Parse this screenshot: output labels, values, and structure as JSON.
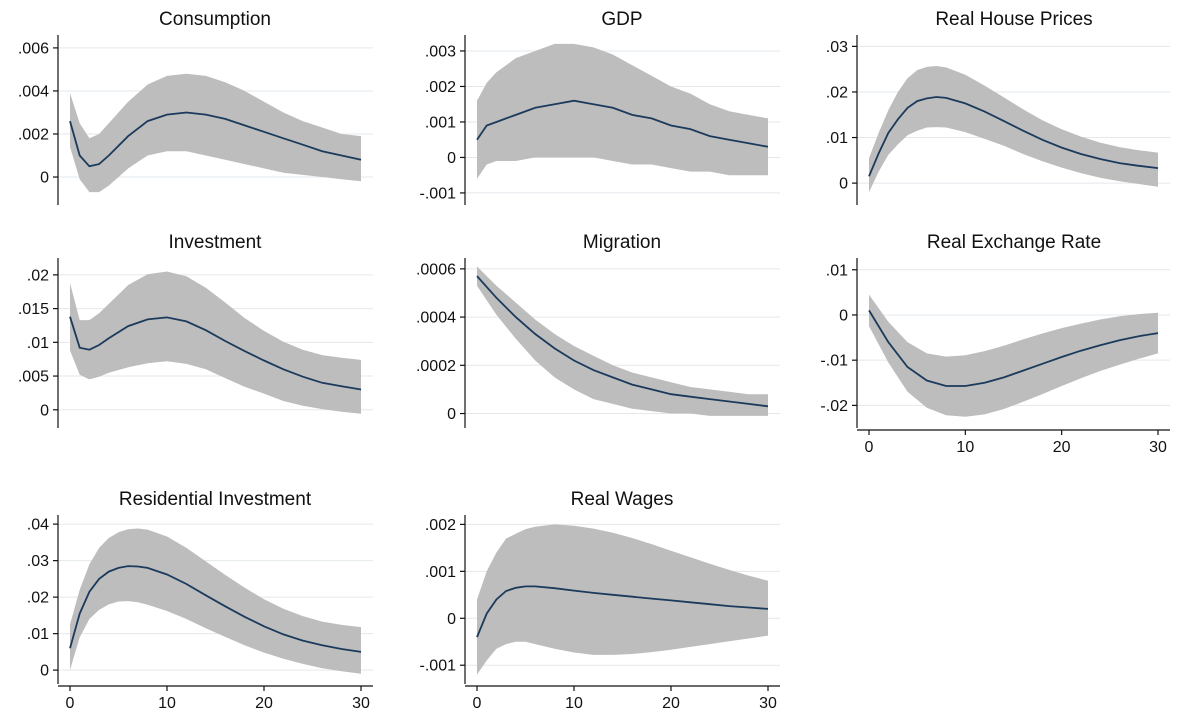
{
  "chart_data": [
    {
      "type": "area",
      "title": "Consumption",
      "x": [
        0,
        1,
        2,
        3,
        4,
        6,
        8,
        10,
        12,
        14,
        16,
        18,
        20,
        22,
        24,
        26,
        28,
        30
      ],
      "series": [
        {
          "values": [
            0.0026,
            0.001,
            0.0005,
            0.0006,
            0.001,
            0.0019,
            0.0026,
            0.0029,
            0.003,
            0.0029,
            0.0027,
            0.0024,
            0.0021,
            0.0018,
            0.0015,
            0.0012,
            0.001,
            0.0008
          ]
        }
      ],
      "band": {
        "upper": [
          0.0039,
          0.0025,
          0.0018,
          0.002,
          0.0025,
          0.0035,
          0.0043,
          0.0047,
          0.0048,
          0.0047,
          0.0044,
          0.004,
          0.0035,
          0.003,
          0.0026,
          0.0023,
          0.002,
          0.0019
        ],
        "lower": [
          0.0014,
          -0.0001,
          -0.0007,
          -0.0007,
          -0.0004,
          0.0004,
          0.001,
          0.0012,
          0.0012,
          0.001,
          0.0008,
          0.0006,
          0.0004,
          0.0002,
          0.0001,
          0.0,
          -0.0001,
          -0.0002
        ]
      },
      "yticks": [
        0,
        0.002,
        0.004,
        0.006
      ],
      "ytick_labels": [
        "0",
        ".002",
        ".004",
        ".006"
      ],
      "ylim": [
        -0.0013,
        0.0066
      ],
      "xlim": [
        0,
        30
      ],
      "xticks": [
        0,
        10,
        20,
        30
      ],
      "xtick_labels": [],
      "grid": true
    },
    {
      "type": "area",
      "title": "GDP",
      "x": [
        0,
        1,
        2,
        3,
        4,
        6,
        8,
        10,
        12,
        14,
        16,
        18,
        20,
        22,
        24,
        26,
        28,
        30
      ],
      "series": [
        {
          "values": [
            0.0005,
            0.0009,
            0.001,
            0.0011,
            0.0012,
            0.0014,
            0.0015,
            0.0016,
            0.0015,
            0.0014,
            0.0012,
            0.0011,
            0.0009,
            0.0008,
            0.0006,
            0.0005,
            0.0004,
            0.0003
          ]
        }
      ],
      "band": {
        "upper": [
          0.0016,
          0.0021,
          0.0024,
          0.0026,
          0.0028,
          0.003,
          0.0032,
          0.0032,
          0.0031,
          0.0029,
          0.0026,
          0.0023,
          0.002,
          0.0018,
          0.0015,
          0.0013,
          0.0012,
          0.0011
        ],
        "lower": [
          -0.0006,
          -0.0002,
          -0.0001,
          -0.0001,
          -0.0001,
          0.0,
          0.0,
          0.0,
          0.0,
          -0.0001,
          -0.0002,
          -0.0002,
          -0.0003,
          -0.0004,
          -0.0004,
          -0.0005,
          -0.0005,
          -0.0005
        ]
      },
      "yticks": [
        -0.001,
        0,
        0.001,
        0.002,
        0.003
      ],
      "ytick_labels": [
        "-.001",
        "0",
        ".001",
        ".002",
        ".003"
      ],
      "ylim": [
        -0.00134,
        0.00345
      ],
      "xlim": [
        0,
        30
      ],
      "xticks": [
        0,
        10,
        20,
        30
      ],
      "xtick_labels": [],
      "grid": true
    },
    {
      "type": "area",
      "title": "Real House Prices",
      "x": [
        0,
        1,
        2,
        3,
        4,
        5,
        6,
        7,
        8,
        10,
        12,
        14,
        16,
        18,
        20,
        22,
        24,
        26,
        28,
        30
      ],
      "series": [
        {
          "values": [
            0.0015,
            0.0065,
            0.011,
            0.014,
            0.0165,
            0.018,
            0.0186,
            0.0189,
            0.0187,
            0.0175,
            0.0157,
            0.0136,
            0.0115,
            0.0095,
            0.0078,
            0.0064,
            0.0053,
            0.0044,
            0.0038,
            0.0033
          ]
        }
      ],
      "band": {
        "upper": [
          0.0055,
          0.011,
          0.016,
          0.02,
          0.023,
          0.0248,
          0.0255,
          0.0257,
          0.0254,
          0.0238,
          0.0214,
          0.0188,
          0.0162,
          0.0138,
          0.0118,
          0.0102,
          0.0089,
          0.0079,
          0.0072,
          0.0067
        ],
        "lower": [
          -0.002,
          0.0025,
          0.0062,
          0.0085,
          0.0105,
          0.0115,
          0.0122,
          0.0123,
          0.0122,
          0.0112,
          0.0097,
          0.0082,
          0.0064,
          0.0048,
          0.0034,
          0.0022,
          0.0012,
          0.0004,
          -0.0002,
          -0.0008
        ]
      },
      "yticks": [
        0,
        0.01,
        0.02,
        0.03
      ],
      "ytick_labels": [
        "0",
        ".01",
        ".02",
        ".03"
      ],
      "ylim": [
        -0.0048,
        0.0325
      ],
      "xlim": [
        0,
        30
      ],
      "xticks": [
        0,
        10,
        20,
        30
      ],
      "xtick_labels": [],
      "grid": true
    },
    {
      "type": "area",
      "title": "Investment",
      "x": [
        0,
        1,
        2,
        3,
        4,
        6,
        8,
        10,
        12,
        14,
        16,
        18,
        20,
        22,
        24,
        26,
        28,
        30
      ],
      "series": [
        {
          "values": [
            0.0138,
            0.0092,
            0.0089,
            0.0096,
            0.0106,
            0.0124,
            0.0134,
            0.0137,
            0.0131,
            0.0118,
            0.0102,
            0.0087,
            0.0073,
            0.006,
            0.0049,
            0.004,
            0.0035,
            0.003
          ]
        }
      ],
      "band": {
        "upper": [
          0.0188,
          0.0133,
          0.0133,
          0.0143,
          0.0157,
          0.0185,
          0.0201,
          0.0205,
          0.0198,
          0.0181,
          0.0159,
          0.0136,
          0.0117,
          0.0101,
          0.0089,
          0.0081,
          0.0077,
          0.0074
        ],
        "lower": [
          0.0088,
          0.0052,
          0.0045,
          0.0049,
          0.0055,
          0.0063,
          0.0069,
          0.0072,
          0.0068,
          0.006,
          0.0047,
          0.0034,
          0.0024,
          0.0013,
          0.0006,
          0.0001,
          -0.0003,
          -0.0006
        ]
      },
      "yticks": [
        0,
        0.005,
        0.01,
        0.015,
        0.02
      ],
      "ytick_labels": [
        "0",
        ".005",
        ".01",
        ".015",
        ".02"
      ],
      "ylim": [
        -0.0027,
        0.0225
      ],
      "xlim": [
        0,
        30
      ],
      "xticks": [
        0,
        10,
        20,
        30
      ],
      "xtick_labels": [],
      "grid": true
    },
    {
      "type": "area",
      "title": "Migration",
      "x": [
        0,
        2,
        4,
        6,
        8,
        10,
        12,
        14,
        16,
        18,
        20,
        22,
        24,
        26,
        28,
        30
      ],
      "series": [
        {
          "values": [
            0.00057,
            0.00048,
            0.0004,
            0.00033,
            0.00027,
            0.00022,
            0.00018,
            0.00015,
            0.00012,
            0.0001,
            8e-05,
            7e-05,
            6e-05,
            5e-05,
            4e-05,
            3e-05
          ]
        }
      ],
      "band": {
        "upper": [
          0.00061,
          0.00053,
          0.00046,
          0.00039,
          0.00033,
          0.00028,
          0.00024,
          0.0002,
          0.00017,
          0.00015,
          0.00013,
          0.00011,
          0.0001,
          9e-05,
          8e-05,
          8e-05
        ],
        "lower": [
          0.00053,
          0.00041,
          0.00031,
          0.00022,
          0.00015,
          0.0001,
          6e-05,
          4e-05,
          2e-05,
          1e-05,
          0.0,
          0.0,
          -1e-05,
          -1e-05,
          -1e-05,
          -1e-05
        ]
      },
      "yticks": [
        0,
        0.0002,
        0.0004,
        0.0006
      ],
      "ytick_labels": [
        "0",
        ".0002",
        ".0004",
        ".0006"
      ],
      "ylim": [
        -6e-05,
        0.000645
      ],
      "xlim": [
        0,
        30
      ],
      "xticks": [
        0,
        10,
        20,
        30
      ],
      "xtick_labels": [],
      "grid": true
    },
    {
      "type": "area",
      "title": "Real Exchange Rate",
      "x": [
        0,
        2,
        4,
        6,
        8,
        10,
        12,
        14,
        16,
        18,
        20,
        22,
        24,
        26,
        28,
        30
      ],
      "series": [
        {
          "values": [
            0.001,
            -0.006,
            -0.0115,
            -0.0145,
            -0.0157,
            -0.0157,
            -0.015,
            -0.0138,
            -0.0123,
            -0.0108,
            -0.0093,
            -0.0079,
            -0.0067,
            -0.0056,
            -0.0047,
            -0.004
          ]
        }
      ],
      "band": {
        "upper": [
          0.0045,
          -0.0015,
          -0.006,
          -0.0085,
          -0.0092,
          -0.0089,
          -0.008,
          -0.0068,
          -0.0054,
          -0.0041,
          -0.0029,
          -0.0019,
          -0.001,
          -0.0003,
          0.0002,
          0.0005
        ],
        "lower": [
          -0.0025,
          -0.0105,
          -0.017,
          -0.0205,
          -0.0222,
          -0.0225,
          -0.022,
          -0.0208,
          -0.0192,
          -0.0175,
          -0.0157,
          -0.014,
          -0.0124,
          -0.011,
          -0.0097,
          -0.0085
        ]
      },
      "yticks": [
        -0.02,
        -0.01,
        0,
        0.01
      ],
      "ytick_labels": [
        "-.02",
        "-.01",
        "0",
        ".01"
      ],
      "ylim": [
        -0.025,
        0.0126
      ],
      "xlim": [
        0,
        30
      ],
      "xticks": [
        0,
        10,
        20,
        30
      ],
      "xtick_labels": [
        "0",
        "10",
        "20",
        "30"
      ],
      "grid": true
    },
    {
      "type": "area",
      "title": "Residential Investment",
      "x": [
        0,
        1,
        2,
        3,
        4,
        5,
        6,
        7,
        8,
        10,
        12,
        14,
        16,
        18,
        20,
        22,
        24,
        26,
        28,
        30
      ],
      "series": [
        {
          "values": [
            0.006,
            0.0155,
            0.0215,
            0.025,
            0.027,
            0.028,
            0.0285,
            0.0284,
            0.028,
            0.0262,
            0.0236,
            0.0205,
            0.0175,
            0.0146,
            0.012,
            0.0098,
            0.0081,
            0.0068,
            0.0058,
            0.005
          ]
        }
      ],
      "band": {
        "upper": [
          0.0125,
          0.022,
          0.029,
          0.0335,
          0.0362,
          0.0378,
          0.0386,
          0.0388,
          0.0385,
          0.0366,
          0.0335,
          0.0298,
          0.0261,
          0.0226,
          0.0194,
          0.0168,
          0.0148,
          0.0133,
          0.0124,
          0.0118
        ],
        "lower": [
          0.0,
          0.009,
          0.014,
          0.0165,
          0.018,
          0.0188,
          0.0189,
          0.0186,
          0.0179,
          0.0162,
          0.014,
          0.0115,
          0.0091,
          0.0068,
          0.0048,
          0.0031,
          0.0017,
          0.0005,
          -0.0003,
          -0.001
        ]
      },
      "yticks": [
        0,
        0.01,
        0.02,
        0.03,
        0.04
      ],
      "ytick_labels": [
        "0",
        ".01",
        ".02",
        ".03",
        ".04"
      ],
      "ylim": [
        -0.0038,
        0.0425
      ],
      "xlim": [
        0,
        30
      ],
      "xticks": [
        0,
        10,
        20,
        30
      ],
      "xtick_labels": [
        "0",
        "10",
        "20",
        "30"
      ],
      "grid": true
    },
    {
      "type": "area",
      "title": "Real Wages",
      "x": [
        0,
        1,
        2,
        3,
        4,
        5,
        6,
        8,
        10,
        12,
        14,
        16,
        18,
        20,
        22,
        24,
        26,
        28,
        30
      ],
      "series": [
        {
          "values": [
            -0.0004,
            0.0001,
            0.0004,
            0.00058,
            0.00065,
            0.00068,
            0.00068,
            0.00064,
            0.00059,
            0.00054,
            0.0005,
            0.00046,
            0.00042,
            0.00038,
            0.00034,
            0.0003,
            0.00026,
            0.00023,
            0.0002
          ]
        }
      ],
      "band": {
        "upper": [
          0.0004,
          0.001,
          0.0014,
          0.0017,
          0.0018,
          0.0019,
          0.00195,
          0.002,
          0.00197,
          0.00191,
          0.00182,
          0.00171,
          0.00158,
          0.00144,
          0.0013,
          0.00116,
          0.00103,
          0.00091,
          0.0008
        ],
        "lower": [
          -0.0012,
          -0.0009,
          -0.00065,
          -0.00055,
          -0.0005,
          -0.0005,
          -0.00055,
          -0.00065,
          -0.00073,
          -0.00078,
          -0.00078,
          -0.00076,
          -0.00072,
          -0.00067,
          -0.00061,
          -0.00055,
          -0.00049,
          -0.00043,
          -0.00037
        ]
      },
      "yticks": [
        -0.001,
        0,
        0.001,
        0.002
      ],
      "ytick_labels": [
        "-.001",
        "0",
        ".001",
        ".002"
      ],
      "ylim": [
        -0.0014,
        0.0022
      ],
      "xlim": [
        0,
        30
      ],
      "xticks": [
        0,
        10,
        20,
        30
      ],
      "xtick_labels": [
        "0",
        "10",
        "20",
        "30"
      ],
      "grid": true
    }
  ]
}
